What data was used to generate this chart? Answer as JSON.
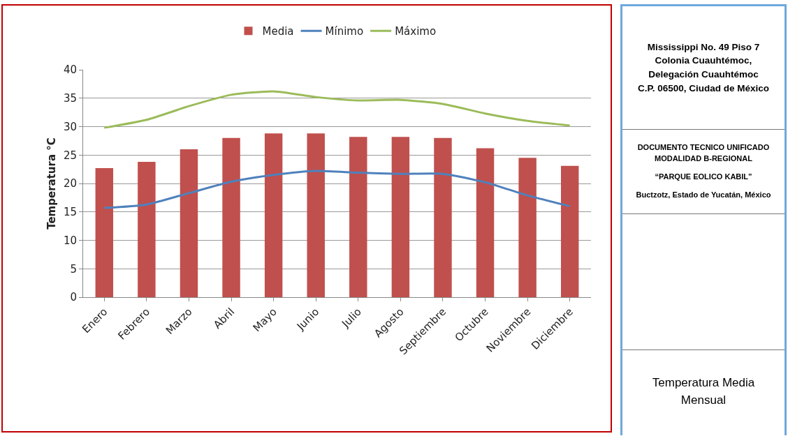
{
  "chart_data": {
    "type": "bar",
    "title": "Temperatura Media Mensual",
    "ylabel": "Temperatura °C",
    "annotations": [
      "Mississippi No. 49 Piso 7\nColonia Cuauhtémoc,\nDelegación Cuauhtémoc\nC.P. 06500, Ciudad de México",
      "DOCUMENTO  TECNICO UNIFICADO\nMODALIDAD  B-REGIONAL",
      "“PARQUE  EOLICO KABIL”",
      "Buctzotz, Estado de Yucatán, México"
    ],
    "categories": [
      "Enero",
      "Febrero",
      "Marzo",
      "Abril",
      "Mayo",
      "Junio",
      "Julio",
      "Agosto",
      "Septiembre",
      "Octubre",
      "Noviembre",
      "Diciembre"
    ],
    "series": [
      {
        "name": "Media",
        "color": "#c0504d",
        "values": [
          22.7,
          23.8,
          26.0,
          28.0,
          28.8,
          28.8,
          28.2,
          28.2,
          28.0,
          26.2,
          24.5,
          23.1
        ]
      },
      {
        "name": "Mínimo",
        "type": "line",
        "color": "#4f81bd",
        "values": [
          15.7,
          16.3,
          18.3,
          20.3,
          21.5,
          22.2,
          21.9,
          21.7,
          21.7,
          20.2,
          17.9,
          16.0
        ]
      },
      {
        "name": "Máximo",
        "type": "line",
        "color": "#9bbb59",
        "values": [
          29.8,
          31.2,
          33.6,
          35.6,
          36.2,
          35.2,
          34.6,
          34.7,
          34.0,
          32.3,
          31.0,
          30.2
        ]
      }
    ],
    "ylim": [
      0,
      40
    ],
    "yticks": [
      0,
      5,
      10,
      15,
      20,
      25,
      30,
      35,
      40
    ],
    "grid": "y",
    "legend": "top",
    "marker": "none",
    "line_style": "solid"
  }
}
